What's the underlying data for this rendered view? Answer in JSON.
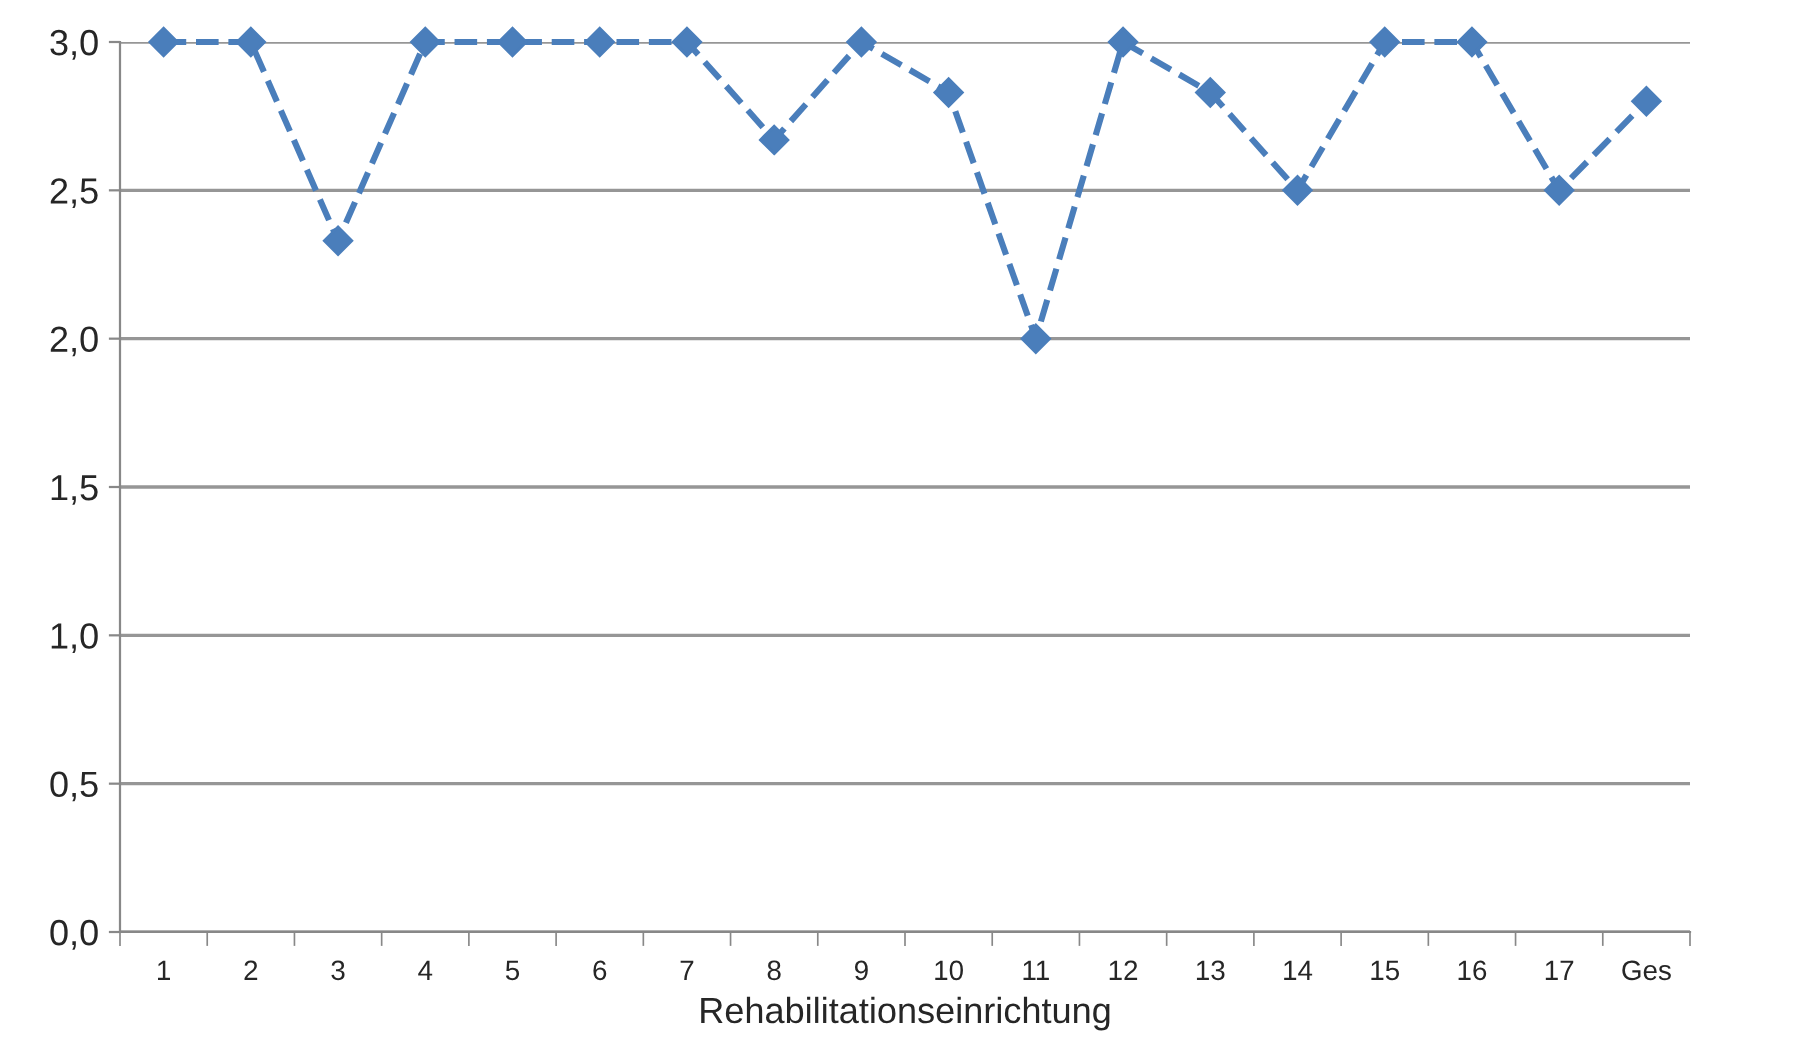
{
  "chart_data": {
    "type": "line",
    "xlabel": "Rehabilitationseinrichtung",
    "categories": [
      "1",
      "2",
      "3",
      "4",
      "5",
      "6",
      "7",
      "8",
      "9",
      "10",
      "11",
      "12",
      "13",
      "14",
      "15",
      "16",
      "17",
      "Ges"
    ],
    "series": [
      {
        "color": "#4a7ebb",
        "values": [
          3.0,
          3.0,
          2.33,
          3.0,
          3.0,
          3.0,
          3.0,
          2.67,
          3.0,
          2.83,
          2.0,
          3.0,
          2.83,
          2.5,
          3.0,
          3.0,
          2.5,
          2.8
        ]
      }
    ],
    "ylim": [
      0,
      3
    ],
    "yticks": [
      {
        "value": 0,
        "label": "0,0"
      },
      {
        "value": 0.5,
        "label": "0,5"
      },
      {
        "value": 1,
        "label": "1,0"
      },
      {
        "value": 1.5,
        "label": "1,5"
      },
      {
        "value": 2,
        "label": "2,0"
      },
      {
        "value": 2.5,
        "label": "2,5"
      },
      {
        "value": 3,
        "label": "3,0"
      }
    ],
    "grid": "y",
    "marker": "diamond",
    "line_style": "dashed"
  }
}
